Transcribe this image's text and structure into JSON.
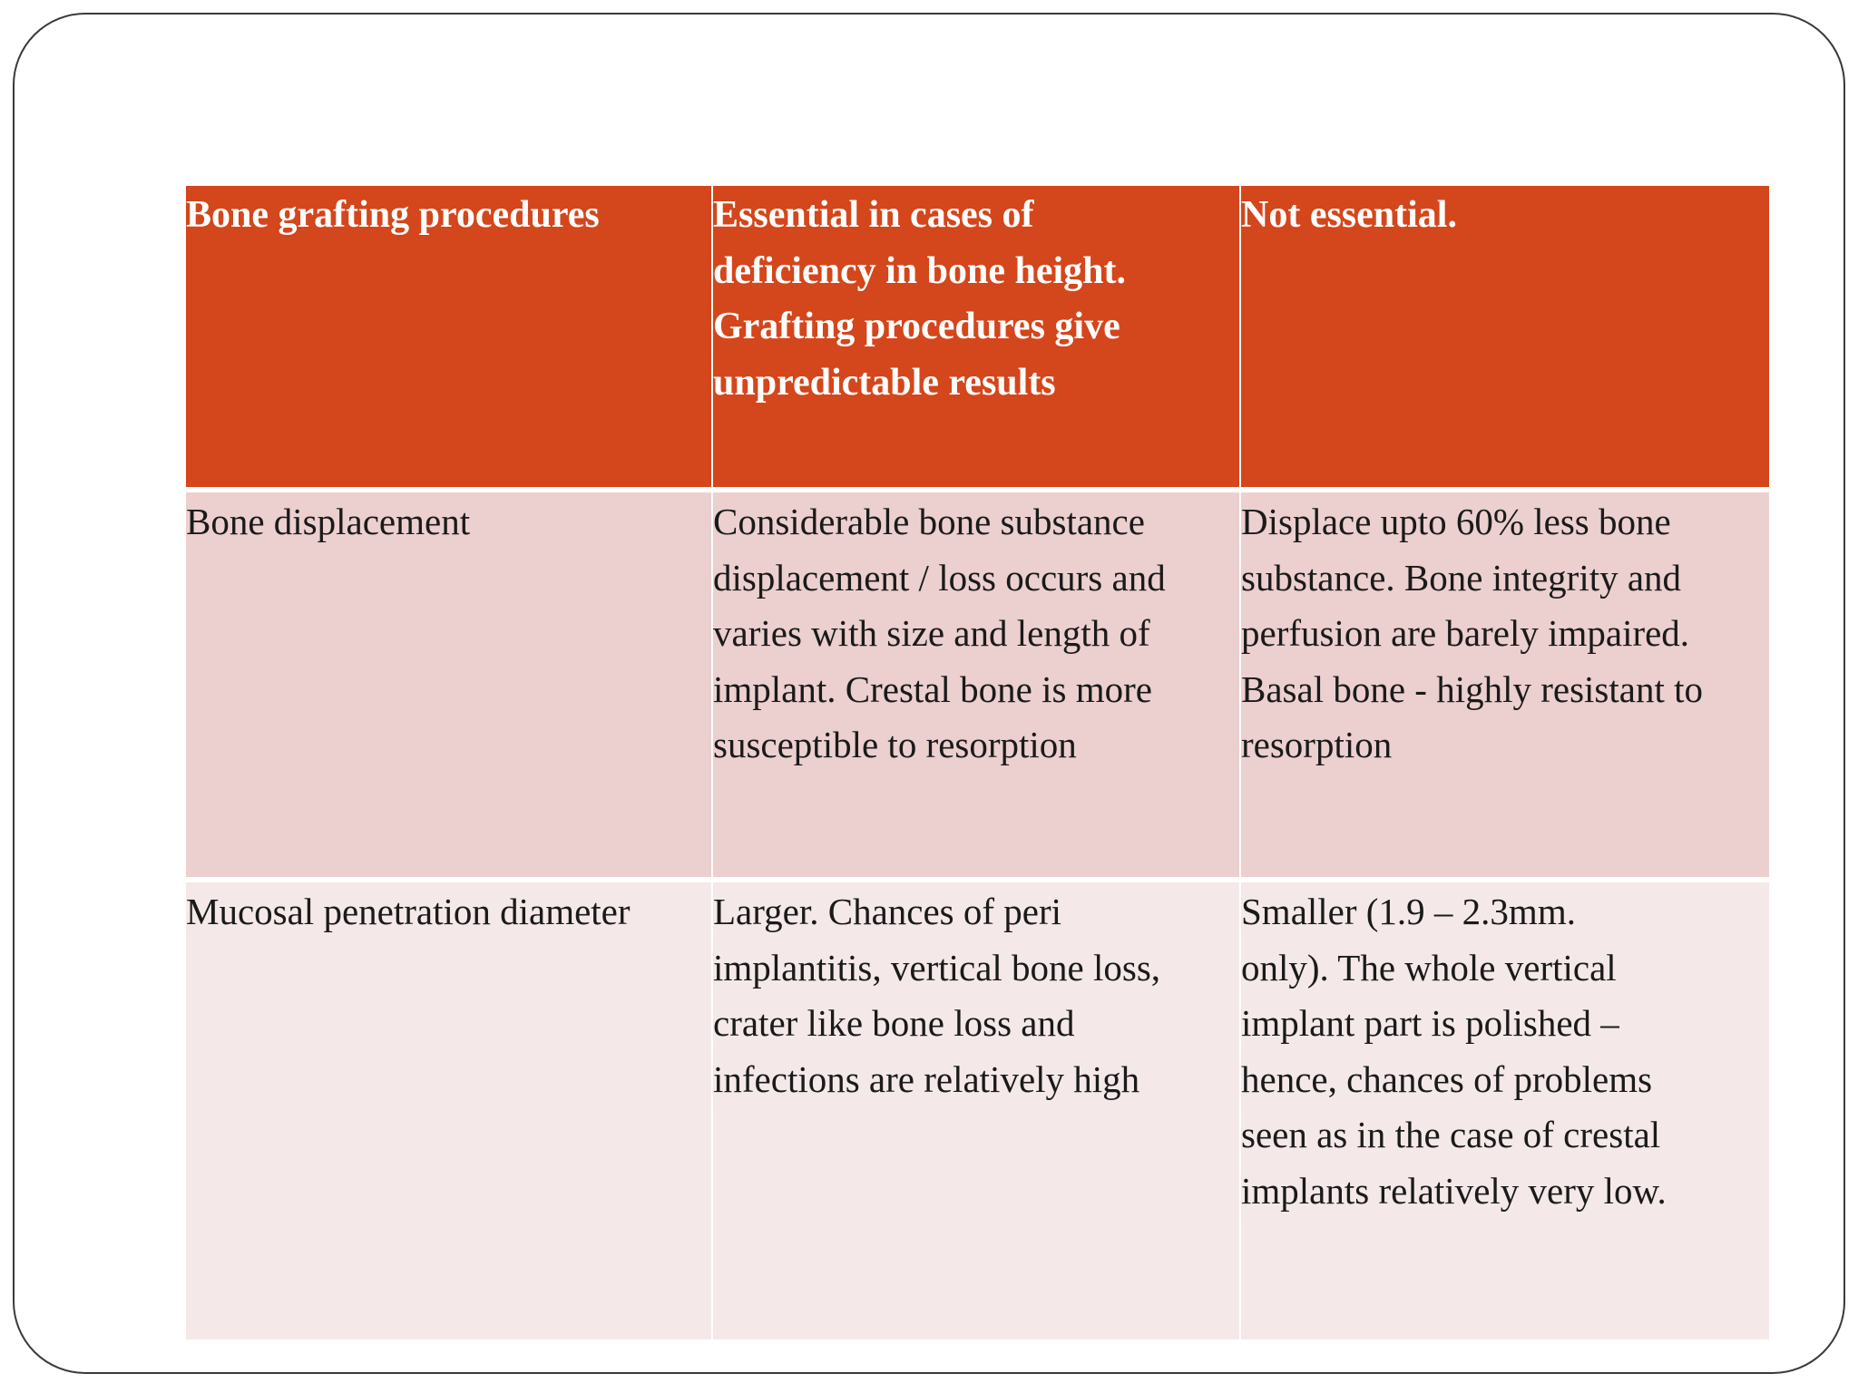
{
  "table": {
    "header": [
      "Bone grafting procedures",
      "Essential in cases of\ndeficiency in bone height.\nGrafting procedures give\nunpredictable results",
      "Not essential."
    ],
    "rows": [
      [
        "Bone displacement",
        "Considerable bone substance\ndisplacement / loss occurs and\nvaries with size and length of\nimplant. Crestal bone is more\nsusceptible to resorption",
        "Displace upto 60% less bone\nsubstance. Bone integrity and\nperfusion are barely impaired.\nBasal bone - highly resistant to\nresorption"
      ],
      [
        "Mucosal penetration diameter",
        "Larger. Chances of peri\nimplantitis, vertical bone loss,\ncrater like bone loss and\ninfections are relatively high",
        "Smaller (1.9 – 2.3mm.\nonly). The whole vertical\nimplant part is polished –\nhence,  chances  of problems\nseen as in the case of crestal\nimplants relatively very low."
      ]
    ]
  },
  "colors": {
    "header_bg": "#d4461b",
    "row1_bg": "#eccfcf",
    "row2_bg": "#f4e8e8"
  }
}
